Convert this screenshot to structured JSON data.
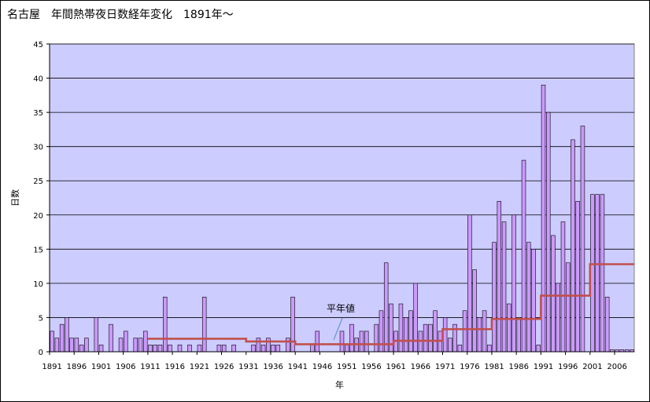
{
  "chart_data": {
    "type": "bar",
    "title": "名古屋　年間熱帯夜日数経年変化　1891年～",
    "xlabel": "年",
    "ylabel": "日数",
    "ylim": [
      0,
      45
    ],
    "yticks": [
      0,
      5,
      10,
      15,
      20,
      25,
      30,
      35,
      40,
      45
    ],
    "xtick_labels": [
      "1891",
      "1896",
      "1901",
      "1906",
      "1911",
      "1916",
      "1921",
      "1926",
      "1931",
      "1936",
      "1941",
      "1946",
      "1951",
      "1956",
      "1961",
      "1966",
      "1971",
      "1976",
      "1981",
      "1986",
      "1991",
      "1996",
      "2001",
      "2006"
    ],
    "grid": true,
    "bar_color": "#cc99ff",
    "plot_bg": "#ccccff",
    "series": [
      {
        "years": [
          1891,
          1892,
          1893,
          1894,
          1895,
          1896,
          1897,
          1898,
          1899,
          1900,
          1901,
          1902,
          1903,
          1904,
          1905,
          1906,
          1907,
          1908,
          1909,
          1910,
          1911,
          1912,
          1913,
          1914,
          1915,
          1916,
          1917,
          1918,
          1919,
          1920,
          1921,
          1922,
          1923,
          1924,
          1925,
          1926,
          1927,
          1928,
          1929,
          1930,
          1931,
          1932,
          1933,
          1934,
          1935,
          1936,
          1937,
          1938,
          1939,
          1940,
          1941,
          1942,
          1943,
          1944,
          1945,
          1946,
          1947,
          1948,
          1949,
          1950,
          1951,
          1952,
          1953,
          1954,
          1955,
          1956,
          1957,
          1958,
          1959,
          1960,
          1961,
          1962,
          1963,
          1964,
          1965,
          1966,
          1967,
          1968,
          1969,
          1970,
          1971,
          1972,
          1973,
          1974,
          1975,
          1976,
          1977,
          1978,
          1979,
          1980,
          1981,
          1982,
          1983,
          1984,
          1985,
          1986,
          1987,
          1988,
          1989,
          1990,
          1991,
          1992,
          1993,
          1994,
          1995,
          1996,
          1997,
          1998,
          1999,
          2000,
          2001,
          2002,
          2003,
          2004,
          2005,
          2006,
          2007,
          2008,
          2009
        ],
        "values": [
          3,
          2,
          4,
          5,
          2,
          2,
          1,
          2,
          0,
          5,
          1,
          0,
          4,
          0,
          2,
          3,
          0,
          2,
          2,
          3,
          1,
          1,
          1,
          8,
          1,
          0,
          1,
          0,
          1,
          0,
          1,
          8,
          0,
          0,
          1,
          1,
          0,
          1,
          0,
          0,
          0,
          1,
          2,
          1,
          2,
          1,
          1,
          0,
          2,
          8,
          0,
          0,
          0,
          1,
          3,
          0,
          0,
          0,
          0,
          3,
          1,
          4,
          2,
          3,
          3,
          0,
          4,
          6,
          13,
          7,
          3,
          7,
          5,
          6,
          10,
          3,
          4,
          4,
          6,
          3,
          5,
          2,
          4,
          1,
          6,
          20,
          12,
          5,
          6,
          1,
          16,
          22,
          19,
          7,
          20,
          5,
          28,
          16,
          15,
          1,
          39,
          35,
          17,
          10,
          19,
          13,
          31,
          22,
          33,
          0,
          23,
          23,
          23,
          8,
          0.3,
          0.3,
          0.3,
          0.3,
          0.3
        ]
      },
      {
        "name": "平年値",
        "type": "step-line",
        "color": "#c0504d",
        "segments": [
          {
            "from": 1911,
            "to": 1930,
            "value": 1.9
          },
          {
            "from": 1931,
            "to": 1940,
            "value": 1.5
          },
          {
            "from": 1941,
            "to": 1960,
            "value": 1.1
          },
          {
            "from": 1961,
            "to": 1970,
            "value": 1.6
          },
          {
            "from": 1971,
            "to": 1980,
            "value": 3.3
          },
          {
            "from": 1981,
            "to": 1990,
            "value": 4.8
          },
          {
            "from": 1991,
            "to": 2000,
            "value": 8.2
          },
          {
            "from": 2001,
            "to": 2009,
            "value": 12.8
          }
        ]
      }
    ]
  }
}
